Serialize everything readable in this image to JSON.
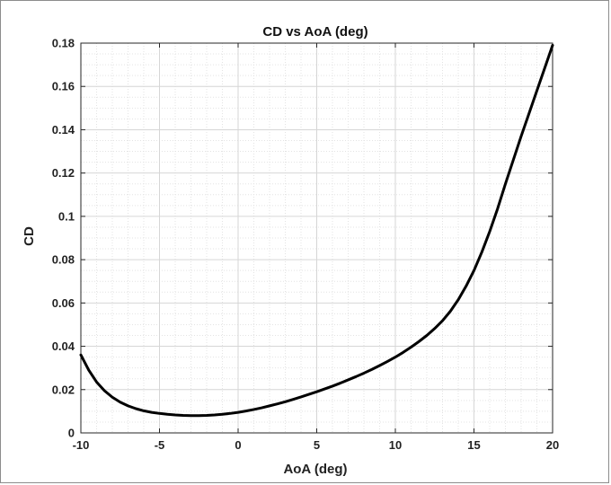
{
  "chart_data": {
    "type": "line",
    "title": "CD vs AoA (deg)",
    "xlabel": "AoA (deg)",
    "ylabel": "CD",
    "xlim": [
      -10,
      20
    ],
    "ylim": [
      0,
      0.18
    ],
    "xticks": [
      -10,
      -5,
      0,
      5,
      10,
      15,
      20
    ],
    "xtick_labels": [
      "-10",
      "-5",
      "0",
      "5",
      "10",
      "15",
      "20"
    ],
    "yticks": [
      0,
      0.02,
      0.04,
      0.06,
      0.08,
      0.1,
      0.12,
      0.14,
      0.16,
      0.18
    ],
    "ytick_labels": [
      "0",
      "0.02",
      "0.04",
      "0.06",
      "0.08",
      "0.1",
      "0.12",
      "0.14",
      "0.16",
      "0.18"
    ],
    "grid": true,
    "minor_grid": true,
    "series": [
      {
        "color": "#000000",
        "x": [
          -10,
          -9.5,
          -9,
          -8.5,
          -8,
          -7.5,
          -7,
          -6.5,
          -6,
          -5.5,
          -5,
          -4.5,
          -4,
          -3.5,
          -3,
          -2.5,
          -2,
          -1.5,
          -1,
          -0.5,
          0,
          0.5,
          1,
          1.5,
          2,
          2.5,
          3,
          3.5,
          4,
          4.5,
          5,
          5.5,
          6,
          6.5,
          7,
          7.5,
          8,
          8.5,
          9,
          9.5,
          10,
          10.5,
          11,
          11.5,
          12,
          12.5,
          13,
          13.5,
          14,
          14.5,
          15,
          15.5,
          16,
          16.5,
          17,
          17.5,
          18,
          18.5,
          19,
          19.5,
          20
        ],
        "y": [
          0.036,
          0.029,
          0.0235,
          0.0195,
          0.0165,
          0.0142,
          0.0125,
          0.0112,
          0.0102,
          0.0095,
          0.009,
          0.0086,
          0.0083,
          0.0081,
          0.008,
          0.008,
          0.0081,
          0.0083,
          0.0086,
          0.009,
          0.0095,
          0.0101,
          0.0108,
          0.0116,
          0.0125,
          0.0134,
          0.0144,
          0.0155,
          0.0166,
          0.0178,
          0.019,
          0.0203,
          0.0216,
          0.023,
          0.0245,
          0.026,
          0.0276,
          0.0293,
          0.0311,
          0.033,
          0.035,
          0.0372,
          0.0396,
          0.0422,
          0.045,
          0.0482,
          0.0518,
          0.0562,
          0.0615,
          0.0678,
          0.075,
          0.0835,
          0.093,
          0.1035,
          0.115,
          0.126,
          0.137,
          0.1475,
          0.158,
          0.1685,
          0.179
        ]
      }
    ]
  }
}
